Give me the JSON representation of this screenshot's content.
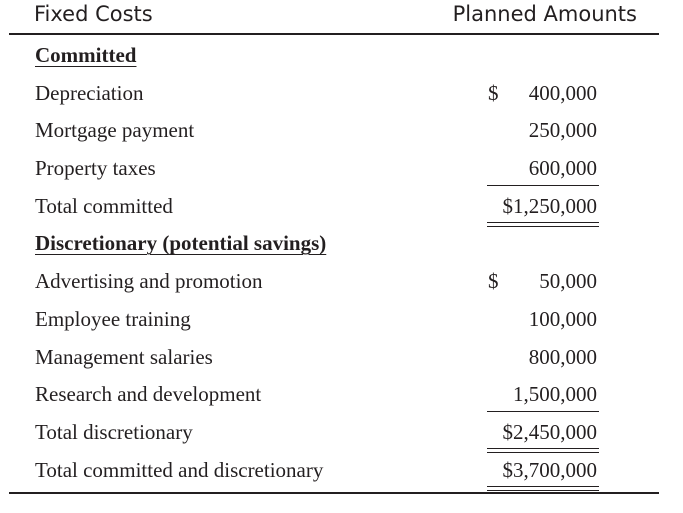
{
  "header": {
    "left": "Fixed Costs",
    "right": "Planned Amounts"
  },
  "rows": [
    {
      "label": "Committed",
      "dollar": "",
      "amount": ""
    },
    {
      "label": "Depreciation",
      "dollar": "$",
      "amount": "400,000"
    },
    {
      "label": "Mortgage payment",
      "dollar": "",
      "amount": "250,000"
    },
    {
      "label": "Property taxes",
      "dollar": "",
      "amount": "600,000"
    },
    {
      "label": "Total committed",
      "dollar": "",
      "amount": "$1,250,000"
    },
    {
      "label": "Discretionary (potential savings)",
      "dollar": "",
      "amount": ""
    },
    {
      "label": "Advertising and promotion",
      "dollar": "$",
      "amount": "50,000"
    },
    {
      "label": "Employee training",
      "dollar": "",
      "amount": "100,000"
    },
    {
      "label": "Management salaries",
      "dollar": "",
      "amount": "800,000"
    },
    {
      "label": "Research and development",
      "dollar": "",
      "amount": "1,500,000"
    },
    {
      "label": "Total discretionary",
      "dollar": "",
      "amount": "$2,450,000"
    },
    {
      "label": "Total committed and discretionary",
      "dollar": "",
      "amount": "$3,700,000"
    }
  ]
}
